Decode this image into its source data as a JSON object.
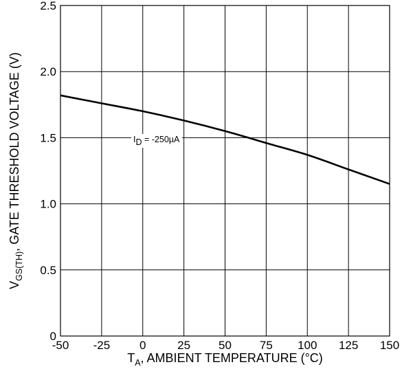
{
  "chart_data": {
    "type": "line",
    "xlabel": {
      "main": "T",
      "sub": "A",
      "rest": ", AMBIENT TEMPERATURE (°C)"
    },
    "ylabel": {
      "main": "V",
      "sub": "GS(TH)",
      "rest": ", GATE THRESHOLD VOLTAGE (V)"
    },
    "xlim": [
      -50,
      150
    ],
    "ylim": [
      0,
      2.5
    ],
    "x_ticks": [
      "-50",
      "-25",
      "0",
      "25",
      "50",
      "75",
      "100",
      "125",
      "150"
    ],
    "y_ticks": [
      "0",
      "0.5",
      "1.0",
      "1.5",
      "2.0",
      "2.5"
    ],
    "grid": true,
    "annotation": {
      "main": "I",
      "sub": "D",
      "rest": " = -250µA"
    },
    "series": [
      {
        "x": [
          -50,
          -25,
          0,
          25,
          50,
          75,
          100,
          125,
          150
        ],
        "y": [
          1.82,
          1.76,
          1.7,
          1.63,
          1.55,
          1.46,
          1.37,
          1.26,
          1.15
        ]
      }
    ]
  }
}
